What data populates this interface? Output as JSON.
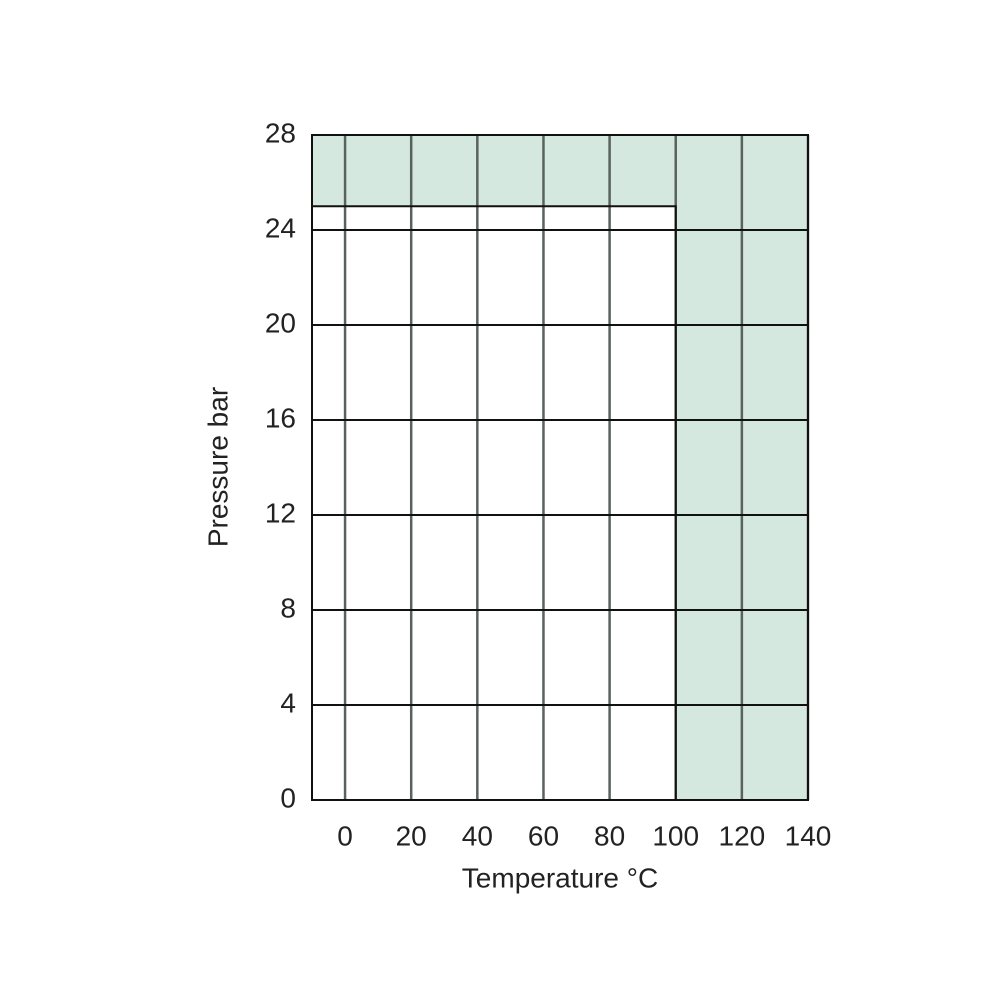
{
  "chart_data": {
    "type": "area",
    "xlabel": "Temperature °C",
    "ylabel": "Pressure bar",
    "x": [
      -10,
      100
    ],
    "values": [
      25,
      25
    ],
    "color": "#ffffff",
    "plot_background": "#d5e8df",
    "xlim": [
      -10,
      140
    ],
    "xticks": [
      0,
      20,
      40,
      60,
      80,
      100,
      120,
      140
    ],
    "ylim": [
      0,
      28
    ],
    "yticks": [
      0,
      4,
      8,
      12,
      16,
      20,
      24,
      28
    ],
    "grid": true
  }
}
